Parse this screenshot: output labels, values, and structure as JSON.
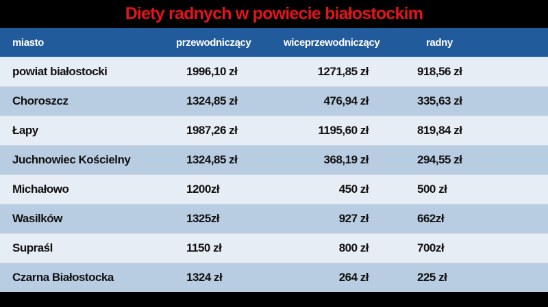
{
  "title": "Diety radnych w powiecie białostockim",
  "colors": {
    "title": "#e3141b",
    "header_bg": "#215b9b",
    "row_light": "#e7edf4",
    "row_dark": "#b9cde2",
    "background": "#000000"
  },
  "table": {
    "headers": [
      "miasto",
      "przewodniczący",
      "wiceprzewodniczący",
      "radny"
    ],
    "rows": [
      [
        "powiat białostocki",
        "1996,10 zł",
        "1271,85 zł",
        "918,56 zł"
      ],
      [
        "Choroszcz",
        "1324,85 zł",
        "476,94 zł",
        "335,63 zł"
      ],
      [
        "Łapy",
        "1987,26 zł",
        "1195,60 zł",
        "819,84 zł"
      ],
      [
        "Juchnowiec Kościelny",
        "1324,85 zł",
        "368,19 zł",
        "294,55 zł"
      ],
      [
        "Michałowo",
        "1200zł",
        "450 zł",
        "500 zł"
      ],
      [
        "Wasilków",
        "1325zł",
        "927 zł",
        "662zł"
      ],
      [
        "Supraśl",
        "1150 zł",
        "800 zł",
        "700zł"
      ],
      [
        "Czarna Białostocka",
        "1324 zł",
        "264 zł",
        "225 zł"
      ]
    ]
  }
}
